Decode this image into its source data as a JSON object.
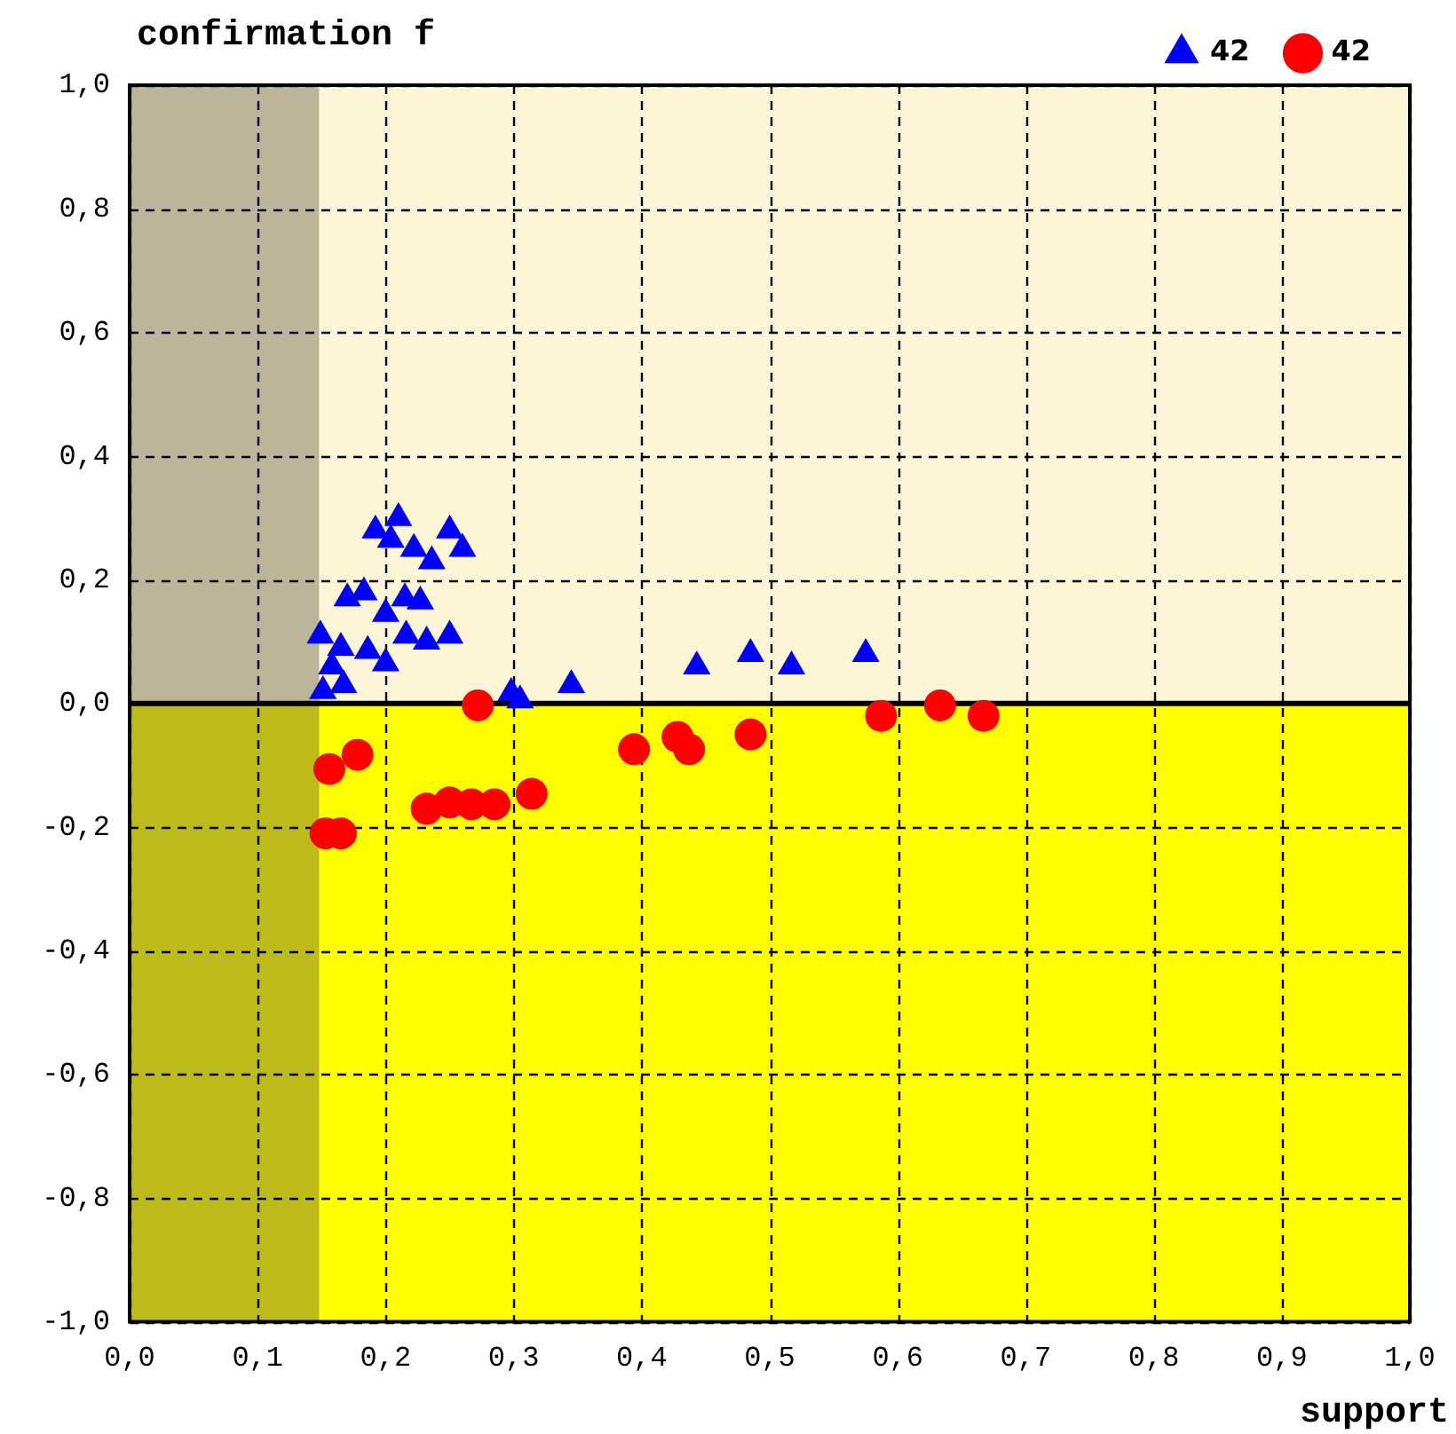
{
  "chart_data": {
    "type": "scatter",
    "ylabel": "confirmation f",
    "xlabel": "support",
    "xlim": [
      0,
      1
    ],
    "ylim": [
      -1,
      1
    ],
    "xticks": [
      {
        "value": 0,
        "label": "0,0"
      },
      {
        "value": 0.1,
        "label": "0,1"
      },
      {
        "value": 0.2,
        "label": "0,2"
      },
      {
        "value": 0.3,
        "label": "0,3"
      },
      {
        "value": 0.4,
        "label": "0,4"
      },
      {
        "value": 0.5,
        "label": "0,5"
      },
      {
        "value": 0.6,
        "label": "0,6"
      },
      {
        "value": 0.7,
        "label": "0,7"
      },
      {
        "value": 0.8,
        "label": "0,8"
      },
      {
        "value": 0.9,
        "label": "0,9"
      },
      {
        "value": 1,
        "label": "1,0"
      }
    ],
    "yticks": [
      {
        "value": -1,
        "label": "-1,0"
      },
      {
        "value": -0.8,
        "label": "-0,8"
      },
      {
        "value": -0.6,
        "label": "-0,6"
      },
      {
        "value": -0.4,
        "label": "-0,4"
      },
      {
        "value": -0.2,
        "label": "-0,2"
      },
      {
        "value": 0,
        "label": "0,0"
      },
      {
        "value": 0.2,
        "label": "0,2"
      },
      {
        "value": 0.4,
        "label": "0,4"
      },
      {
        "value": 0.6,
        "label": "0,6"
      },
      {
        "value": 0.8,
        "label": "0,8"
      },
      {
        "value": 1,
        "label": "1,0"
      }
    ],
    "grid": true,
    "legend": "top right",
    "line_style": "dashed",
    "bands": [
      {
        "axis": "y",
        "from": 0,
        "to": 1,
        "color": "#fdf6d6"
      },
      {
        "axis": "y",
        "from": -1,
        "to": 0,
        "color": "#ffff00"
      },
      {
        "axis": "x",
        "from": 0,
        "to": 0.148,
        "color": "#5a5440"
      }
    ],
    "ref_lines": [
      {
        "axis": "y",
        "value": 0,
        "color": "#000000"
      }
    ],
    "series": [
      {
        "name": "42",
        "color": "#0000ff",
        "marker": "triangle",
        "x": [
          0.192,
          0.21,
          0.204,
          0.222,
          0.25,
          0.26,
          0.236,
          0.17,
          0.183,
          0.215,
          0.227,
          0.2,
          0.149,
          0.25,
          0.232,
          0.216,
          0.165,
          0.186,
          0.2,
          0.158,
          0.151,
          0.167,
          0.298,
          0.305,
          0.345,
          0.443,
          0.485,
          0.517,
          0.575
        ],
        "values": [
          0.28,
          0.3,
          0.265,
          0.25,
          0.28,
          0.25,
          0.23,
          0.17,
          0.18,
          0.17,
          0.165,
          0.145,
          0.11,
          0.11,
          0.1,
          0.11,
          0.09,
          0.085,
          0.065,
          0.06,
          0.02,
          0.03,
          0.017,
          0.005,
          0.03,
          0.06,
          0.08,
          0.06,
          0.08
        ]
      },
      {
        "name": "42",
        "color": "#ff0000",
        "marker": "circle",
        "x": [
          0.272,
          0.178,
          0.156,
          0.153,
          0.165,
          0.232,
          0.25,
          0.267,
          0.28,
          0.285,
          0.314,
          0.394,
          0.428,
          0.437,
          0.485,
          0.587,
          0.633,
          0.667
        ],
        "values": [
          -0.003,
          -0.083,
          -0.106,
          -0.21,
          -0.21,
          -0.17,
          -0.16,
          -0.163,
          null,
          -0.163,
          -0.146,
          -0.074,
          -0.054,
          -0.074,
          -0.05,
          -0.02,
          -0.003,
          -0.02
        ]
      }
    ]
  }
}
